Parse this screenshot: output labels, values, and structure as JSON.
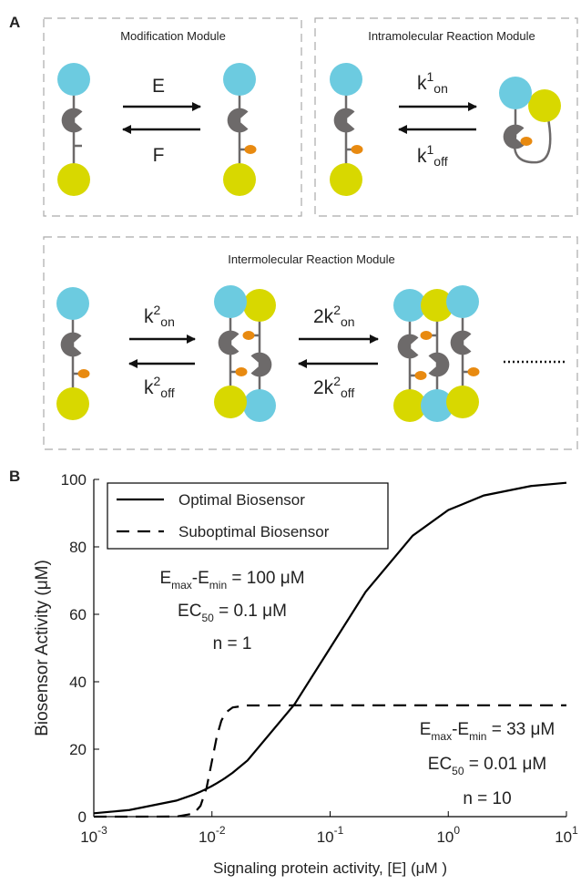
{
  "panel_a": {
    "label": "A",
    "modules": [
      {
        "title": "Modification Module",
        "forward": "E",
        "reverse": "F"
      },
      {
        "title": "Intramolecular Reaction Module",
        "forward": {
          "base": "k",
          "sup": "1",
          "sub": "on"
        },
        "reverse": {
          "base": "k",
          "sup": "1",
          "sub": "off"
        }
      },
      {
        "title": "Intermolecular Reaction Module",
        "steps": [
          {
            "forward": {
              "base": "k",
              "sup": "2",
              "sub": "on"
            },
            "reverse": {
              "base": "k",
              "sup": "2",
              "sub": "off"
            }
          },
          {
            "forward": {
              "base": "2k",
              "sup": "2",
              "sub": "on"
            },
            "reverse": {
              "base": "2k",
              "sup": "2",
              "sub": "off"
            }
          }
        ]
      }
    ]
  },
  "chart_data": {
    "type": "line",
    "panel_label": "B",
    "x_label": "Signaling protein activity, [E] (μM )",
    "y_label": "Biosensor Activity (μM)",
    "xscale": "log",
    "xlim": [
      0.001,
      10
    ],
    "xticks": [
      {
        "value": 0.001,
        "label": {
          "base": "10",
          "exp": "-3"
        }
      },
      {
        "value": 0.01,
        "label": {
          "base": "10",
          "exp": "-2"
        }
      },
      {
        "value": 0.1,
        "label": {
          "base": "10",
          "exp": "-1"
        }
      },
      {
        "value": 1,
        "label": {
          "base": "10",
          "exp": "0"
        }
      },
      {
        "value": 10,
        "label": {
          "base": "10",
          "exp": "1"
        }
      }
    ],
    "ylim": [
      0,
      100
    ],
    "yticks": [
      0,
      20,
      40,
      60,
      80,
      100
    ],
    "legend": "upper left",
    "x": [
      0.001,
      0.002,
      0.005,
      0.007,
      0.008,
      0.009,
      0.01,
      0.011,
      0.012,
      0.013,
      0.015,
      0.02,
      0.05,
      0.1,
      0.2,
      0.5,
      1,
      2,
      5,
      10
    ],
    "series": [
      {
        "name": "Optimal Biosensor",
        "color": "#000000",
        "dash": "solid",
        "values": [
          0.99,
          1.96,
          4.76,
          6.54,
          7.41,
          8.26,
          9.09,
          9.91,
          10.71,
          11.5,
          13.04,
          16.67,
          33.33,
          50,
          66.67,
          83.33,
          90.91,
          95.24,
          98.04,
          99.01
        ]
      },
      {
        "name": "Suboptimal Biosensor",
        "color": "#000000",
        "dash": "dashed",
        "values": [
          0,
          0,
          0.03,
          0.9,
          3.2,
          8.5,
          16.5,
          23.8,
          28.4,
          30.8,
          32.4,
          32.97,
          33,
          33,
          33,
          33,
          33,
          33,
          33,
          33
        ]
      }
    ],
    "annotations": [
      {
        "lines": [
          [
            {
              "text": "E"
            },
            {
              "sub": "max"
            },
            {
              "text": "-E"
            },
            {
              "sub": "min"
            },
            {
              "text": " = 100 μM"
            }
          ],
          [
            {
              "text": "EC"
            },
            {
              "sub": "50"
            },
            {
              "text": " = 0.1 μM"
            }
          ],
          [
            {
              "text": "n = 1"
            }
          ]
        ]
      },
      {
        "lines": [
          [
            {
              "text": "E"
            },
            {
              "sub": "max"
            },
            {
              "text": "-E"
            },
            {
              "sub": "min"
            },
            {
              "text": " = 33 μM"
            }
          ],
          [
            {
              "text": "EC"
            },
            {
              "sub": "50"
            },
            {
              "text": " = 0.01 μM"
            }
          ],
          [
            {
              "text": "n = 10"
            }
          ]
        ]
      }
    ]
  }
}
